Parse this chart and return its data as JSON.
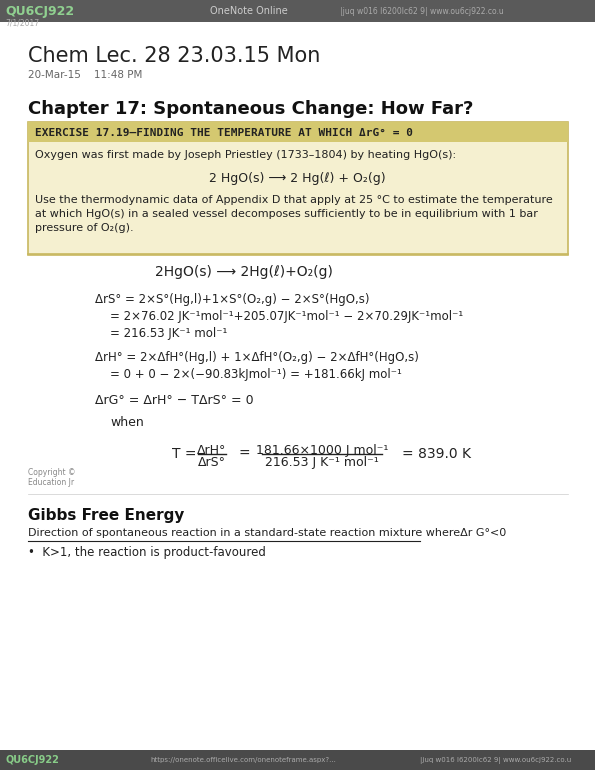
{
  "bg_color": "#f5f5f0",
  "page_bg": "#ffffff",
  "header_bar_color": "#5a5a5a",
  "header_text": "QU6CJ922",
  "header_center_text": "OneNote Online",
  "header_right_text": "|juq w016 l6200lc62 9| www.ou6cj922.co.u",
  "subheader_text": "7/1/2017",
  "title_main": "Chem Lec. 28 23.03.15 Mon",
  "date_text": "20-Mar-15    11:48 PM",
  "chapter_heading": "Chapter 17: Spontaneous Change: How Far?",
  "exercise_box_bg": "#f5f0d0",
  "exercise_box_border": "#c8b860",
  "exercise_title_bar_color": "#d4c870",
  "exercise_title": "EXERCISE 17.19—FINDING THE TEMPERATURE AT WHICH ΔrG° = 0",
  "exercise_intro": "Oxygen was first made by Joseph Priestley (1733–1804) by heating HgO(s):",
  "reaction1": "2 HgO(s) ⟶ 2 Hg(ℓ) + O₂(g)",
  "exercise_body1": "Use the thermodynamic data of Appendix D that apply at 25 °C to estimate the temperature",
  "exercise_body2": "at which HgO(s) in a sealed vessel decomposes sufficiently to be in equilibrium with 1 bar",
  "exercise_body3": "pressure of O₂(g).",
  "divider_color": "#c8b860",
  "reaction2": "2HgO(s) ⟶ 2Hg(ℓ)+O₂(g)",
  "entropy_line1": "ΔrS° = 2×S°(Hg,l)+1×S°(O₂,g) − 2×S°(HgO,s)",
  "entropy_line2": "= 2×76.02 JK⁻¹mol⁻¹+205.07JK⁻¹mol⁻¹ − 2×70.29JK⁻¹mol⁻¹",
  "entropy_line3": "= 216.53 JK⁻¹ mol⁻¹",
  "enthalpy_line1": "ΔrH° = 2×ΔfH°(Hg,l) + 1×ΔfH°(O₂,g) − 2×ΔfH°(HgO,s)",
  "enthalpy_line2": "= 0 + 0 − 2×(−90.83kJmol⁻¹) = +181.66kJ mol⁻¹",
  "gibbs_eq": "ΔrG° = ΔrH° − TΔrS° = 0",
  "when_text": "when",
  "temp_eq_num": "ΔrH°",
  "temp_eq_den": "ΔrS°",
  "temp_eq_num2": "181.66×1000 J mol⁻¹",
  "temp_eq_den2": "216.53 J K⁻¹ mol⁻¹",
  "temp_result": "= 839.0 K",
  "copyright_text": "Copyright ©\nEducation Jr",
  "gibbs_heading": "Gibbs Free Energy",
  "gibbs_underline_text": "Direction of spontaneous reaction in a standard-state reaction mixture whereΔr G°<0",
  "bullet_text": "•  K>1, the reaction is product-favoured",
  "footer_left": "QU6CJ922",
  "footer_center": "https://onenote.officelive.com/onenoteframe.aspx?...",
  "footer_right": "|juq w016 l6200lc62 9| www.ou6cj922.co.u"
}
